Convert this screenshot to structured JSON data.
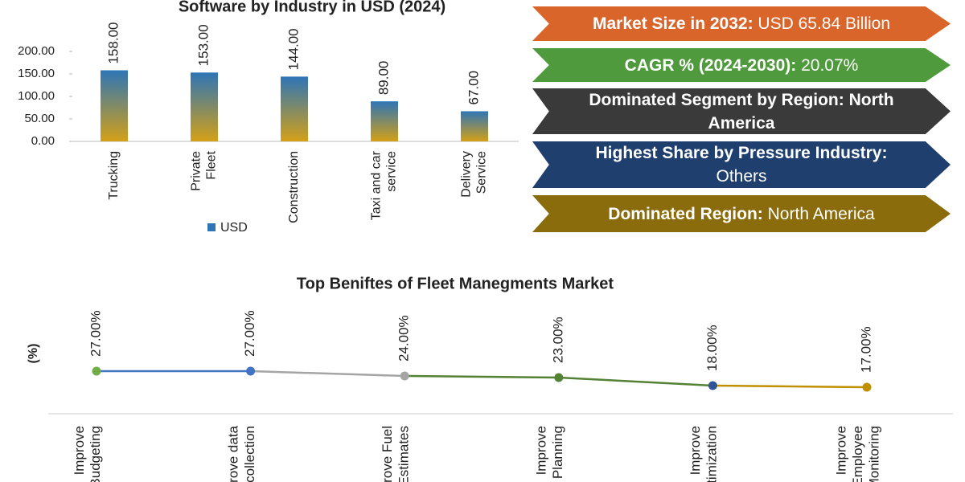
{
  "charts": [
    {
      "chart_data": {
        "type": "bar",
        "title": "Software by Industry in USD (2024)",
        "categories": [
          "Trucking",
          "Private Fleet",
          "Construction",
          "Taxi and car service",
          "Delivery Service"
        ],
        "series": [
          {
            "name": "USD",
            "color": "#2e75b6",
            "values": [
              158,
              153,
              144,
              89,
              67
            ],
            "value_labels": [
              "158.00",
              "153.00",
              "144.00",
              "89.00",
              "67.00"
            ]
          }
        ],
        "ylim": [
          0,
          200
        ],
        "yticks": [
          {
            "value": 0,
            "label": "0.00"
          },
          {
            "value": 50,
            "label": "50.00"
          },
          {
            "value": 100,
            "label": "100.00"
          },
          {
            "value": 150,
            "label": "150.00"
          },
          {
            "value": 200,
            "label": "200.00"
          }
        ]
      }
    },
    {
      "chart_data": {
        "type": "line",
        "title": "Top Beniftes of Fleet Manegments Market",
        "y_label": "(%)",
        "categories": [
          "Improve Budgeting",
          "Improve data collection",
          "Improve Fuel Estimates",
          "Improve Planning",
          "Improve Optimization",
          "Improve Employee Monitoring"
        ],
        "series": [
          {
            "values": [
              27,
              27,
              24,
              23,
              18,
              17
            ],
            "value_labels": [
              "27.00%",
              "27.00%",
              "24.00%",
              "23.00%",
              "18.00%",
              "17.00%"
            ],
            "point_colors": [
              "#70ad47",
              "#4472c4",
              "#a5a5a5",
              "#548235",
              "#2f5597",
              "#bf9000"
            ],
            "segment_colors": [
              "#4472c4",
              "#a5a5a5",
              "#548235",
              "#548235",
              "#bf9000"
            ]
          }
        ]
      }
    }
  ],
  "banners": [
    {
      "label": "Market Size in 2032:",
      "value": "USD 65.84 Billion",
      "color": "#d9652b"
    },
    {
      "label": "CAGR % (2024-2030):",
      "value": "20.07%",
      "color": "#4e9a3c"
    },
    {
      "label": "Dominated Segment by Region:",
      "value": "North America",
      "color": "#3a3a3a"
    },
    {
      "label": "Highest Share by Pressure Industry:",
      "value": "Others",
      "color": "#1f3f6e"
    },
    {
      "label": "Dominated Region:",
      "value": "North America",
      "color": "#8a6c0c"
    }
  ]
}
